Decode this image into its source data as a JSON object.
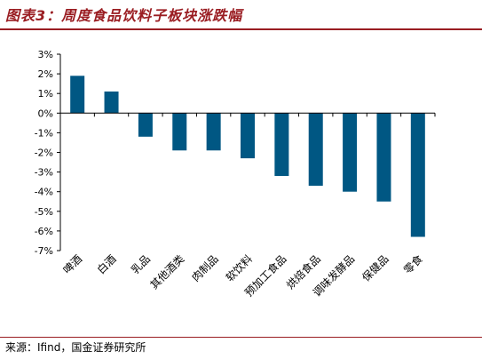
{
  "title": "图表3：周度食品饮料子板块涨跌幅",
  "source": "来源：Ifind，国金证券研究所",
  "colors": {
    "bar": "#005783",
    "title": "#9a1d22",
    "axis": "#000000"
  },
  "chart_data": {
    "type": "bar",
    "title": "",
    "xlabel": "",
    "ylabel": "",
    "categories": [
      "啤酒",
      "白酒",
      "乳品",
      "其他酒类",
      "肉制品",
      "软饮料",
      "预加工食品",
      "烘焙食品",
      "调味发酵品",
      "保健品",
      "零食"
    ],
    "values": [
      1.9,
      1.1,
      -1.2,
      -1.9,
      -1.9,
      -2.3,
      -3.2,
      -3.7,
      -4.0,
      -4.5,
      -6.3
    ],
    "ylim": [
      -7,
      3
    ],
    "yticks": [
      3,
      2,
      1,
      0,
      -1,
      -2,
      -3,
      -4,
      -5,
      -6,
      -7
    ],
    "ytick_labels": [
      "3%",
      "2%",
      "1%",
      "0%",
      "-1%",
      "-2%",
      "-3%",
      "-4%",
      "-5%",
      "-6%",
      "-7%"
    ],
    "grid": false,
    "legend": "none"
  }
}
